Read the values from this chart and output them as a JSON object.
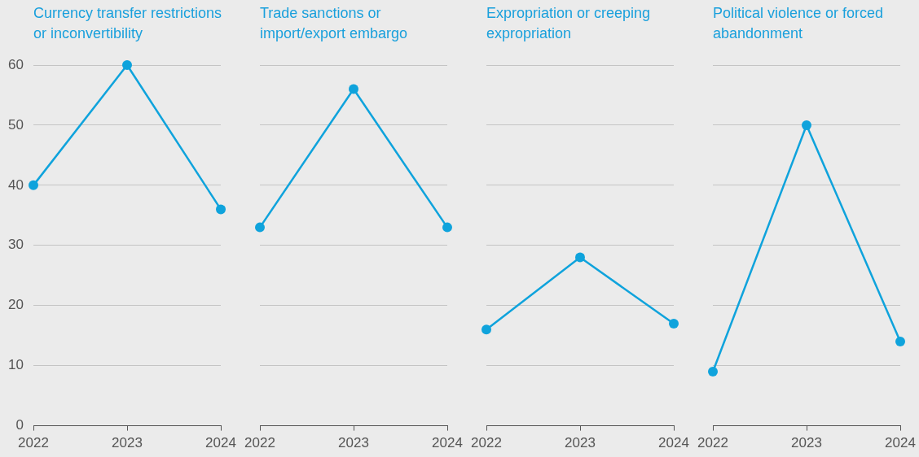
{
  "chart_data": [
    {
      "type": "line",
      "title": "Currency transfer restrictions or inconvertibility",
      "categories": [
        "2022",
        "2023",
        "2024"
      ],
      "series": [
        {
          "color": "#0fa3dc",
          "values": [
            40,
            60,
            36
          ]
        }
      ],
      "ylim": [
        0,
        60
      ],
      "yticks": [
        0,
        10,
        20,
        30,
        40,
        50,
        60
      ],
      "grid": "y",
      "marker": "circle",
      "legend": false
    },
    {
      "type": "line",
      "title": "Trade sanctions or import/export embargo",
      "categories": [
        "2022",
        "2023",
        "2024"
      ],
      "series": [
        {
          "color": "#0fa3dc",
          "values": [
            33,
            56,
            33
          ]
        }
      ],
      "ylim": [
        0,
        60
      ],
      "yticks": [
        0,
        10,
        20,
        30,
        40,
        50,
        60
      ],
      "grid": "y",
      "marker": "circle",
      "legend": false,
      "tick_labels": "x"
    },
    {
      "type": "line",
      "title": "Expropriation or creeping expropriation",
      "categories": [
        "2022",
        "2023",
        "2024"
      ],
      "series": [
        {
          "color": "#0fa3dc",
          "values": [
            16,
            28,
            17
          ]
        }
      ],
      "ylim": [
        0,
        60
      ],
      "yticks": [
        0,
        10,
        20,
        30,
        40,
        50,
        60
      ],
      "grid": "y",
      "marker": "circle",
      "legend": false,
      "tick_labels": "x"
    },
    {
      "type": "line",
      "title": "Political violence or forced abandonment",
      "categories": [
        "2022",
        "2023",
        "2024"
      ],
      "series": [
        {
          "color": "#0fa3dc",
          "values": [
            9,
            50,
            14
          ]
        }
      ],
      "ylim": [
        0,
        60
      ],
      "yticks": [
        0,
        10,
        20,
        30,
        40,
        50,
        60
      ],
      "grid": "y",
      "marker": "circle",
      "legend": false,
      "tick_labels": "x"
    }
  ]
}
